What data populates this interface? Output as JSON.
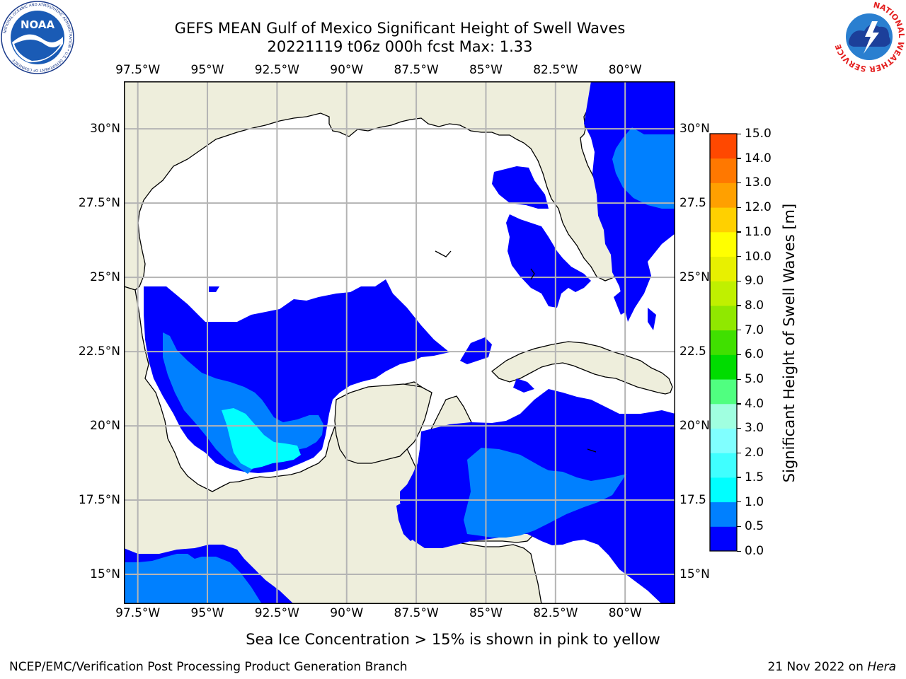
{
  "title": {
    "line1": "GEFS MEAN Gulf of Mexico Significant Height of Swell Waves",
    "line2": "20221119 t06z 000h fcst   Max: 1.33"
  },
  "map": {
    "lon_labels": [
      "97.5°W",
      "95°W",
      "92.5°W",
      "90°W",
      "87.5°W",
      "85°W",
      "82.5°W",
      "80°W"
    ],
    "lat_labels_left": [
      "30°N",
      "27.5°N",
      "25°N",
      "22.5°N",
      "20°N",
      "17.5°N",
      "15°N"
    ],
    "lat_labels_right": [
      "30°N",
      "27.5",
      "25°N",
      "22.5",
      "20°N",
      "17.5",
      "15°N"
    ],
    "lon_range": [
      -98,
      -78.2
    ],
    "lat_range": [
      14,
      31.6
    ],
    "land_color": "#eeeedc",
    "ocean_color": "#ffffff",
    "grid_color": "#b4b4b4"
  },
  "colorbar": {
    "label": "Significant Height of Swell Waves [m]",
    "tick_labels": [
      "0.0",
      "0.5",
      "1.0",
      "1.5",
      "2.0",
      "3.0",
      "4.0",
      "5.0",
      "6.0",
      "7.0",
      "8.0",
      "9.0",
      "10.0",
      "11.0",
      "12.0",
      "13.0",
      "14.0",
      "15.0"
    ],
    "colors": [
      "#0000ff",
      "#0080ff",
      "#00ffff",
      "#40ffff",
      "#80ffff",
      "#a0ffe0",
      "#50ff80",
      "#00dc00",
      "#40e000",
      "#90e800",
      "#c0f000",
      "#e8f000",
      "#ffff00",
      "#ffd000",
      "#ffa000",
      "#ff7800",
      "#ff4800",
      "#ff1800"
    ]
  },
  "footer": {
    "note": "Sea Ice Concentration > 15% is shown in pink to yellow",
    "credit_left": "NCEP/EMC/Verification Post Processing Product Generation Branch",
    "credit_right_date": "21 Nov 2022 on",
    "credit_right_host": "Hera"
  },
  "logos": {
    "noaa_text": "NOAA",
    "noaa_ring": "NATIONAL OCEANIC AND ATMOSPHERIC ADMINISTRATION • U.S. DEPARTMENT OF COMMERCE",
    "nws_ring": "NATIONAL WEATHER SERVICE"
  }
}
